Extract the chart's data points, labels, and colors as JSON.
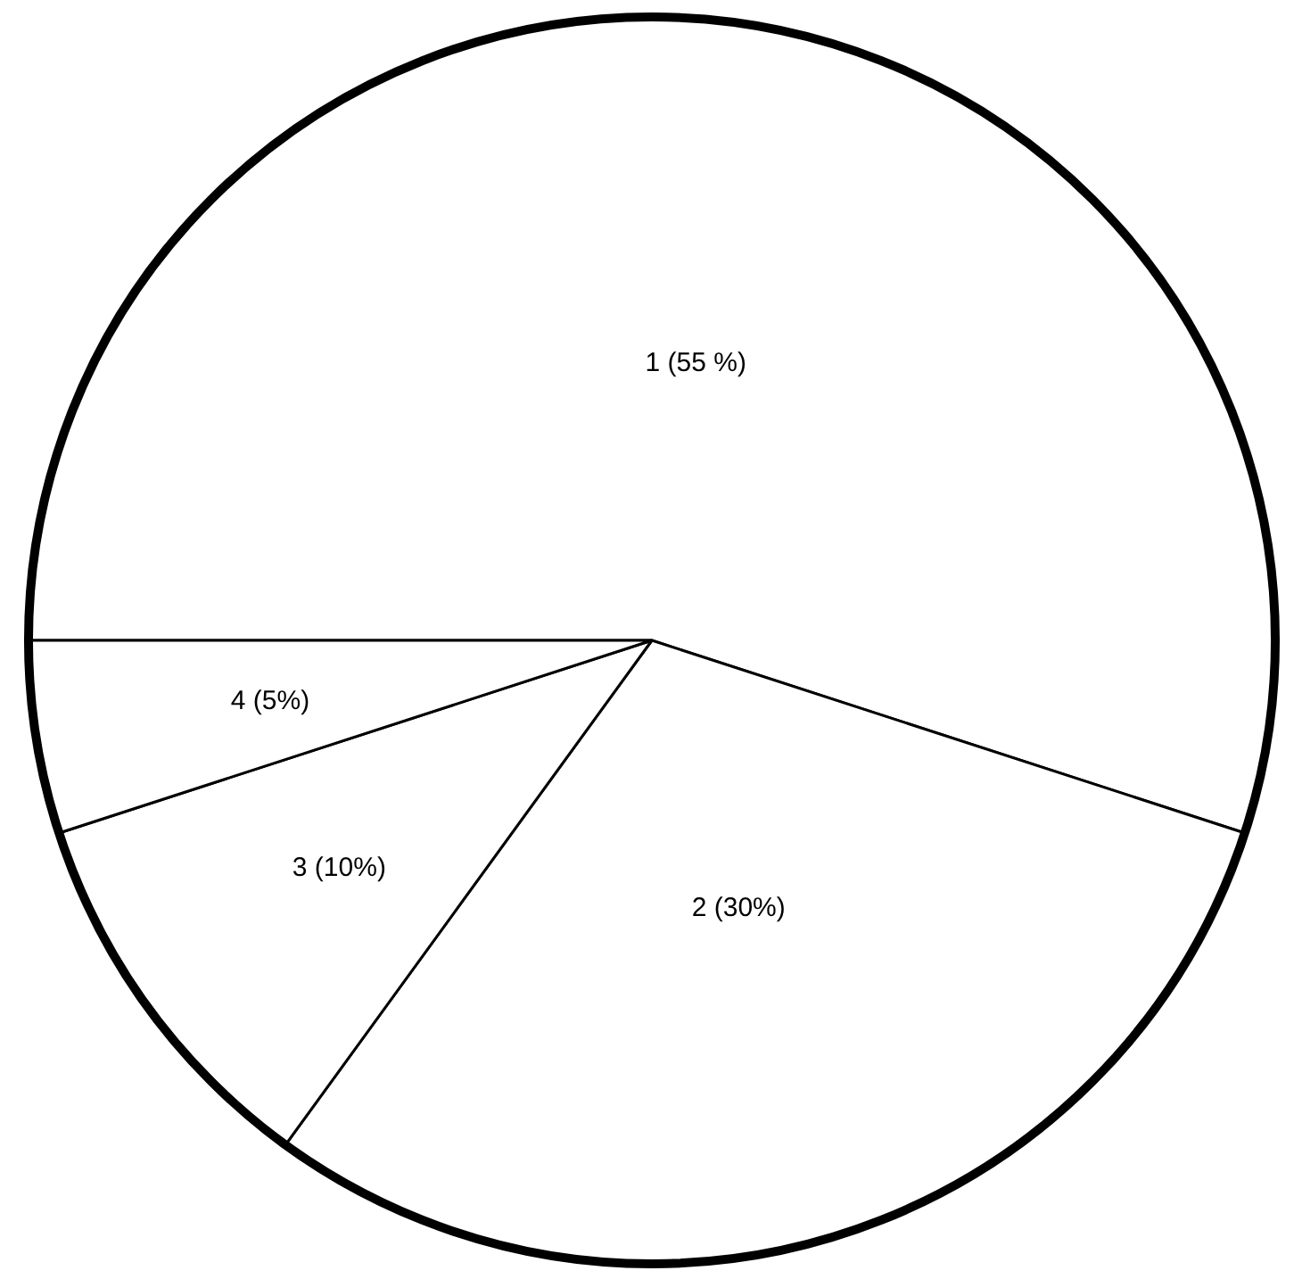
{
  "chart_data": {
    "type": "pie",
    "categories": [
      "1",
      "2",
      "3",
      "4"
    ],
    "values": [
      55,
      30,
      10,
      5
    ],
    "colors": [
      "#ffffff",
      "#ffffff",
      "#ffffff",
      "#ffffff"
    ],
    "value_labels": [
      "(55 %)",
      "(30%)",
      "(10%)",
      "(5%)"
    ],
    "legend": false
  }
}
